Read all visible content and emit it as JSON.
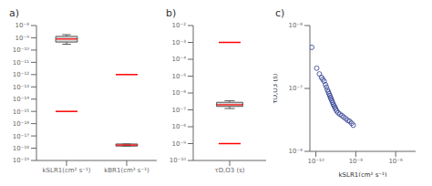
{
  "chart_data": [
    {
      "type": "box",
      "title": "a)",
      "categories": [
        "kSLR1(cm² s⁻¹)",
        "kBR1(cm³ s⁻¹)"
      ],
      "boxes": [
        {
          "median": 8e-10,
          "q1": 4.5e-10,
          "q3": 1.3e-09,
          "whisker_low": 3e-10,
          "whisker_high": 1.8e-09,
          "outliers": [
            1e-15
          ]
        },
        {
          "median": 1.8e-18,
          "q1": 1.5e-18,
          "q3": 2.2e-18,
          "whisker_low": 1.5e-18,
          "whisker_high": 2.2e-18,
          "outliers": [
            1e-12
          ]
        }
      ],
      "ylim": [
        1e-19,
        1e-08
      ],
      "yticks": [
        {
          "value": 1e-19,
          "label": "10⁻¹⁹"
        },
        {
          "value": 1e-18,
          "label": "10⁻¹⁸"
        },
        {
          "value": 1e-17,
          "label": "10⁻¹⁷"
        },
        {
          "value": 1e-16,
          "label": "10⁻¹⁶"
        },
        {
          "value": 1e-15,
          "label": "10⁻¹⁵"
        },
        {
          "value": 1e-14,
          "label": "10⁻¹⁴"
        },
        {
          "value": 1e-13,
          "label": "10⁻¹³"
        },
        {
          "value": 1e-12,
          "label": "10⁻¹²"
        },
        {
          "value": 1e-11,
          "label": "10⁻¹¹"
        },
        {
          "value": 1e-10,
          "label": "10⁻¹⁰"
        },
        {
          "value": 1e-09,
          "label": "10⁻⁹"
        },
        {
          "value": 1e-08,
          "label": "10⁻⁸"
        }
      ],
      "log": "y",
      "grid": false,
      "color": "red"
    },
    {
      "type": "box",
      "title": "b)",
      "categories": [
        "τD,O3 (s)"
      ],
      "boxes": [
        {
          "median": 2e-07,
          "q1": 1.6e-07,
          "q3": 2.8e-07,
          "whisker_low": 1.2e-07,
          "whisker_high": 3.5e-07,
          "outliers": [
            0.001,
            1e-09
          ]
        }
      ],
      "ylim": [
        1e-10,
        0.01
      ],
      "yticks": [
        {
          "value": 1e-10,
          "label": "10⁻¹⁰"
        },
        {
          "value": 1e-09,
          "label": "10⁻⁹"
        },
        {
          "value": 1e-08,
          "label": "10⁻⁸"
        },
        {
          "value": 1e-07,
          "label": "10⁻⁷"
        },
        {
          "value": 1e-06,
          "label": "10⁻⁶"
        },
        {
          "value": 1e-05,
          "label": "10⁻⁵"
        },
        {
          "value": 0.0001,
          "label": "10⁻⁴"
        },
        {
          "value": 0.001,
          "label": "10⁻³"
        },
        {
          "value": 0.01,
          "label": "10⁻²"
        }
      ],
      "log": "y",
      "grid": false,
      "color": "red"
    },
    {
      "type": "scatter",
      "title": "c)",
      "x": [
        6.2e-11,
        1.1e-10,
        1.5e-10,
        1.9e-10,
        2.2e-10,
        2.6e-10,
        3e-10,
        3.4e-10,
        3.8e-10,
        4.2e-10,
        4.6e-10,
        5e-10,
        5.4e-10,
        5.8e-10,
        6.3e-10,
        6.9e-10,
        7.5e-10,
        8.2e-10,
        9e-10,
        9.8e-10,
        1.1e-09,
        1.3e-09,
        1.6e-09,
        2e-09,
        2.5e-09,
        3.2e-09,
        4e-09,
        5e-09,
        6.2e-09,
        7.5e-09
      ],
      "values": [
        4.5e-07,
        2.1e-07,
        1.7e-07,
        1.5e-07,
        1.4e-07,
        1.3e-07,
        1.15e-07,
        1.05e-07,
        9.5e-08,
        8.8e-08,
        8.2e-08,
        7.7e-08,
        7.2e-08,
        6.8e-08,
        6.4e-08,
        6e-08,
        5.6e-08,
        5.3e-08,
        5e-08,
        4.7e-08,
        4.4e-08,
        4.1e-08,
        3.9e-08,
        3.7e-08,
        3.5e-08,
        3.3e-08,
        3.1e-08,
        3e-08,
        2.8e-08,
        2.6e-08
      ],
      "xlim": [
        5e-11,
        1e-05
      ],
      "ylim": [
        1e-08,
        1e-06
      ],
      "xticks": [
        {
          "value": 1e-10,
          "label": "10⁻¹⁰"
        },
        {
          "value": 1e-08,
          "label": "10⁻⁸"
        },
        {
          "value": 1e-06,
          "label": "10⁻⁶"
        }
      ],
      "yticks": [
        {
          "value": 1e-08,
          "label": "10⁻⁸"
        },
        {
          "value": 1e-07,
          "label": "10⁻⁷"
        },
        {
          "value": 1e-06,
          "label": "10⁻⁶"
        }
      ],
      "x_label": "kSLR1(cm² s⁻¹)",
      "y_label": "τD,O3 (s)",
      "log": true,
      "grid": false,
      "color": "#2b3a8f",
      "marker": "circle"
    }
  ]
}
